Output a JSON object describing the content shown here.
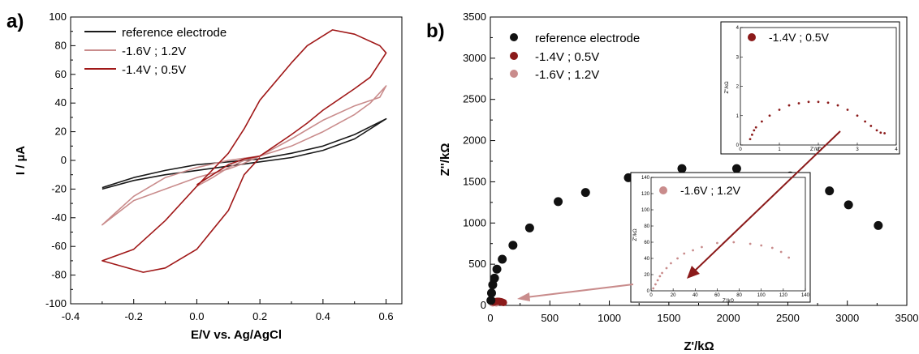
{
  "chart_data": [
    {
      "panel": "a)",
      "type": "line",
      "xlabel": "E/V vs. Ag/AgCl",
      "ylabel": "I / µA",
      "xlim": [
        -0.4,
        0.65
      ],
      "ylim": [
        -100,
        100
      ],
      "xticks": [
        "-0.4",
        "-0.2",
        "0.0",
        "0.2",
        "0.4",
        "0.6"
      ],
      "yticks": [
        "-100",
        "-80",
        "-60",
        "-40",
        "-20",
        "0",
        "20",
        "40",
        "60",
        "80",
        "100"
      ],
      "legend_position": "top-left",
      "series": [
        {
          "name": "reference electrode",
          "color": "#1a1a1a",
          "points": [
            [
              -0.3,
              -20
            ],
            [
              -0.2,
              -14
            ],
            [
              -0.1,
              -10
            ],
            [
              0.0,
              -7
            ],
            [
              0.1,
              -4
            ],
            [
              0.2,
              -1
            ],
            [
              0.3,
              2
            ],
            [
              0.4,
              7
            ],
            [
              0.5,
              15
            ],
            [
              0.6,
              29
            ],
            [
              0.5,
              18
            ],
            [
              0.4,
              10
            ],
            [
              0.3,
              5
            ],
            [
              0.2,
              1
            ],
            [
              0.1,
              -1
            ],
            [
              0.0,
              -3
            ],
            [
              -0.1,
              -7
            ],
            [
              -0.2,
              -12
            ],
            [
              -0.3,
              -19
            ]
          ]
        },
        {
          "name": "-1.6V ; 1.2V",
          "color": "#c98c8c",
          "points": [
            [
              0.0,
              -18
            ],
            [
              0.05,
              -12
            ],
            [
              0.1,
              -5
            ],
            [
              0.15,
              0
            ],
            [
              0.2,
              3
            ],
            [
              0.3,
              10
            ],
            [
              0.4,
              20
            ],
            [
              0.5,
              32
            ],
            [
              0.55,
              40
            ],
            [
              0.6,
              52
            ],
            [
              0.58,
              44
            ],
            [
              0.5,
              38
            ],
            [
              0.4,
              28
            ],
            [
              0.3,
              15
            ],
            [
              0.2,
              3
            ],
            [
              0.15,
              -2
            ],
            [
              0.1,
              -6
            ],
            [
              0.0,
              -12
            ],
            [
              -0.1,
              -20
            ],
            [
              -0.2,
              -28
            ],
            [
              -0.3,
              -45
            ],
            [
              -0.25,
              -35
            ],
            [
              -0.2,
              -25
            ],
            [
              -0.1,
              -12
            ],
            [
              0.0,
              -5
            ],
            [
              0.1,
              0
            ],
            [
              0.2,
              3
            ]
          ]
        },
        {
          "name": "-1.4V ; 0.5V",
          "color": "#a01818",
          "points": [
            [
              0.0,
              -17
            ],
            [
              0.05,
              -10
            ],
            [
              0.1,
              -3
            ],
            [
              0.15,
              1
            ],
            [
              0.2,
              3
            ],
            [
              0.3,
              18
            ],
            [
              0.35,
              26
            ],
            [
              0.4,
              35
            ],
            [
              0.5,
              50
            ],
            [
              0.55,
              58
            ],
            [
              0.6,
              75
            ],
            [
              0.58,
              80
            ],
            [
              0.5,
              88
            ],
            [
              0.43,
              91
            ],
            [
              0.35,
              80
            ],
            [
              0.3,
              68
            ],
            [
              0.2,
              42
            ],
            [
              0.15,
              22
            ],
            [
              0.1,
              5
            ],
            [
              0.0,
              -18
            ],
            [
              -0.1,
              -42
            ],
            [
              -0.2,
              -62
            ],
            [
              -0.3,
              -70
            ],
            [
              -0.17,
              -78
            ],
            [
              -0.1,
              -75
            ],
            [
              0.0,
              -62
            ],
            [
              0.1,
              -35
            ],
            [
              0.15,
              -10
            ],
            [
              0.2,
              2
            ]
          ]
        }
      ]
    },
    {
      "panel": "b)",
      "type": "scatter",
      "xlabel": "Z'/kΩ",
      "ylabel": "Z''/kΩ",
      "xlim": [
        0,
        3500
      ],
      "ylim": [
        0,
        3500
      ],
      "xticks": [
        "0",
        "500",
        "1000",
        "1500",
        "2000",
        "2500",
        "3000",
        "3500"
      ],
      "yticks": [
        "0",
        "500",
        "1000",
        "1500",
        "2000",
        "2500",
        "3000",
        "3500"
      ],
      "legend_position": "top-left",
      "series": [
        {
          "name": "reference electrode",
          "color": "#111111",
          "x": [
            5,
            10,
            20,
            35,
            55,
            100,
            190,
            330,
            570,
            800,
            1160,
            1610,
            2070,
            2520,
            2850,
            3010,
            3260
          ],
          "y": [
            60,
            150,
            250,
            330,
            440,
            560,
            730,
            940,
            1260,
            1370,
            1550,
            1660,
            1660,
            1570,
            1390,
            1220,
            970
          ]
        },
        {
          "name": "-1.4V ; 0.5V",
          "color": "#8b1a1a",
          "x": [
            30,
            40,
            50,
            60,
            70,
            80,
            90,
            100,
            110
          ],
          "y": [
            40,
            45,
            48,
            50,
            50,
            48,
            45,
            40,
            35
          ]
        },
        {
          "name": "-1.6V ; 1.2V",
          "color": "#c98c8c",
          "x": [
            20,
            30,
            40,
            50
          ],
          "y": [
            30,
            35,
            35,
            30
          ]
        }
      ],
      "insets": [
        {
          "legend": "-1.4V ; 0.5V",
          "color": "#8b1a1a",
          "xlabel": "Z'/kΩ",
          "ylabel": "Z''/kΩ",
          "xlim": [
            0,
            4
          ],
          "ylim": [
            0,
            4
          ],
          "xticks": [
            "0",
            "1",
            "2",
            "3",
            "4"
          ],
          "yticks": [
            "0",
            "1",
            "2",
            "3",
            "4"
          ],
          "x": [
            0.25,
            0.3,
            0.35,
            0.4,
            0.55,
            0.75,
            1.0,
            1.25,
            1.5,
            1.75,
            2.0,
            2.25,
            2.5,
            2.75,
            3.0,
            3.2,
            3.35,
            3.5,
            3.6,
            3.7
          ],
          "y": [
            0.2,
            0.35,
            0.5,
            0.6,
            0.8,
            1.0,
            1.2,
            1.35,
            1.42,
            1.47,
            1.47,
            1.44,
            1.35,
            1.2,
            1.0,
            0.8,
            0.65,
            0.5,
            0.42,
            0.4
          ]
        },
        {
          "legend": "-1.6V ; 1.2V",
          "color": "#c98c8c",
          "xlabel": "Z'/kΩ",
          "ylabel": "Z''/kΩ",
          "xlim": [
            0,
            140
          ],
          "ylim": [
            0,
            140
          ],
          "xticks": [
            "0",
            "20",
            "40",
            "60",
            "80",
            "100",
            "120",
            "140"
          ],
          "yticks": [
            "0",
            "20",
            "40",
            "60",
            "80",
            "100",
            "120",
            "140"
          ],
          "x": [
            2,
            4,
            6,
            8,
            10,
            14,
            18,
            24,
            30,
            38,
            46,
            60,
            75,
            90,
            100,
            110,
            118,
            125
          ],
          "y": [
            3,
            8,
            13,
            18,
            22,
            28,
            34,
            40,
            46,
            50,
            54,
            59,
            60,
            58,
            56,
            53,
            48,
            41
          ]
        }
      ]
    }
  ]
}
